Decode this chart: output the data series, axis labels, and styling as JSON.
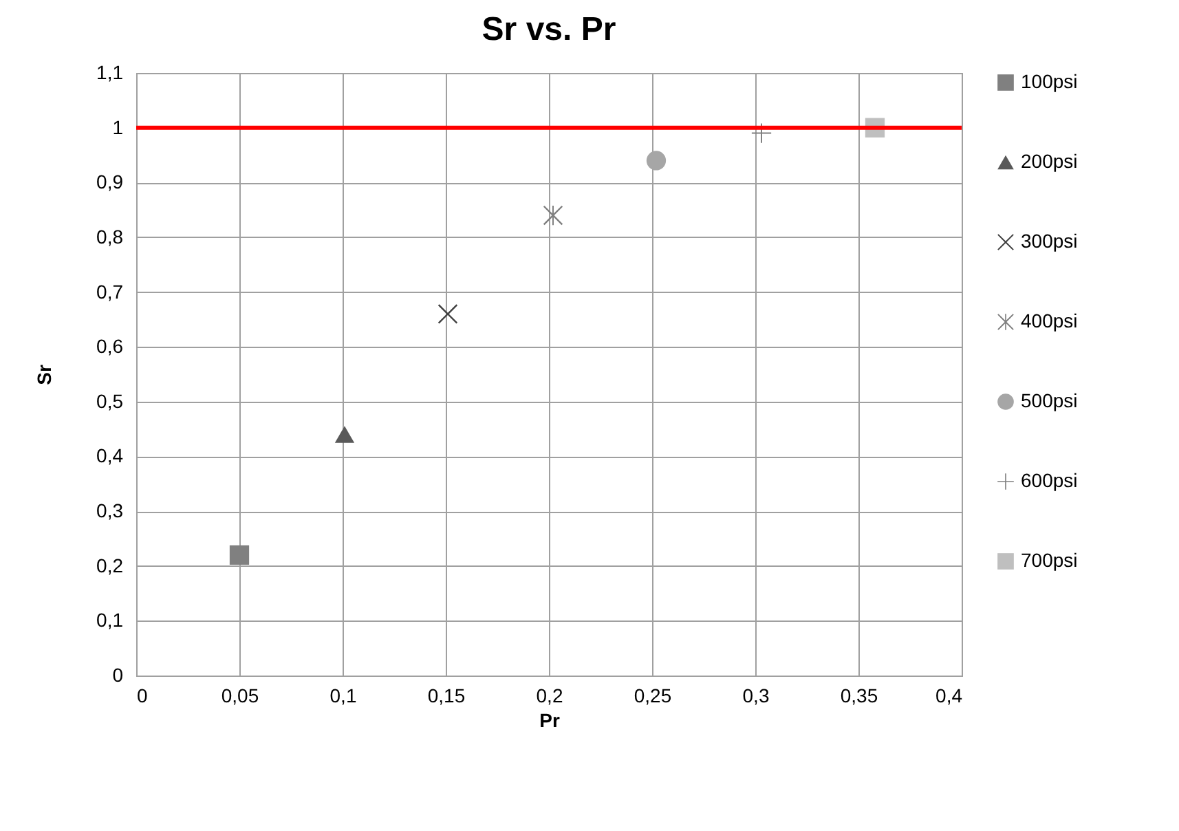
{
  "chart_data": {
    "type": "scatter",
    "title": "Sr vs. Pr",
    "xlabel": "Pr",
    "ylabel": "Sr",
    "series": [
      {
        "name": "100psi",
        "color": "#808080",
        "marker": "square",
        "x": [
          0.05
        ],
        "values": [
          0.22
        ]
      },
      {
        "name": "200psi",
        "color": "#595959",
        "marker": "triangle",
        "x": [
          0.101
        ],
        "values": [
          0.44
        ]
      },
      {
        "name": "300psi",
        "color": "#404040",
        "marker": "cross",
        "x": [
          0.151
        ],
        "values": [
          0.66
        ]
      },
      {
        "name": "400psi",
        "color": "#808080",
        "marker": "star",
        "x": [
          0.202
        ],
        "values": [
          0.84
        ]
      },
      {
        "name": "500psi",
        "color": "#a6a6a6",
        "marker": "circle",
        "x": [
          0.252
        ],
        "values": [
          0.94
        ]
      },
      {
        "name": "600psi",
        "color": "#808080",
        "marker": "plus",
        "x": [
          0.303
        ],
        "values": [
          0.99
        ]
      },
      {
        "name": "700psi",
        "color": "#bfbfbf",
        "marker": "square",
        "x": [
          0.358
        ],
        "values": [
          1.0
        ]
      }
    ],
    "xlim": [
      0,
      0.4
    ],
    "xticks": [
      0,
      {
        "value": 0.05,
        "label": "0,05"
      },
      {
        "value": 0.1,
        "label": "0,1"
      },
      {
        "value": 0.15,
        "label": "0,15"
      },
      {
        "value": 0.2,
        "label": "0,2"
      },
      {
        "value": 0.25,
        "label": "0,25"
      },
      {
        "value": 0.3,
        "label": "0,3"
      },
      {
        "value": 0.35,
        "label": "0,35"
      },
      {
        "value": 0.4,
        "label": "0,4"
      }
    ],
    "ylim": [
      0,
      1.1
    ],
    "yticks": [
      0,
      {
        "value": 0.1,
        "label": "0,1"
      },
      {
        "value": 0.2,
        "label": "0,2"
      },
      {
        "value": 0.3,
        "label": "0,3"
      },
      {
        "value": 0.4,
        "label": "0,4"
      },
      {
        "value": 0.5,
        "label": "0,5"
      },
      {
        "value": 0.6,
        "label": "0,6"
      },
      {
        "value": 0.7,
        "label": "0,7"
      },
      {
        "value": 0.8,
        "label": "0,8"
      },
      {
        "value": 0.9,
        "label": "0,9"
      },
      1,
      {
        "value": 1.1,
        "label": "1,1"
      }
    ],
    "ref_lines": [
      {
        "axis": "y",
        "value": 1,
        "color": "#ff0000"
      }
    ],
    "grid": true,
    "legend": "right"
  }
}
